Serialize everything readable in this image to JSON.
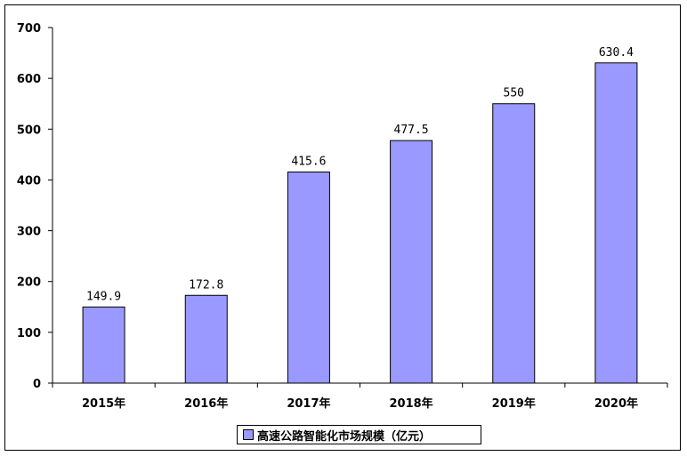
{
  "chart_data": {
    "type": "bar",
    "categories": [
      "2015年",
      "2016年",
      "2017年",
      "2018年",
      "2019年",
      "2020年"
    ],
    "series": [
      {
        "name": "高速公路智能化市场规模（亿元）",
        "values": [
          149.9,
          172.8,
          415.6,
          477.5,
          550,
          630.4
        ]
      }
    ],
    "data_labels": [
      "149.9",
      "172.8",
      "415.6",
      "477.5",
      "550",
      "630.4"
    ],
    "yticks": [
      "0",
      "100",
      "200",
      "300",
      "400",
      "500",
      "600",
      "700"
    ],
    "ylim": [
      0,
      700
    ],
    "grid": false,
    "legend_position": "bottom",
    "colors": {
      "bar": "#9999ff",
      "border": "#000000"
    }
  }
}
